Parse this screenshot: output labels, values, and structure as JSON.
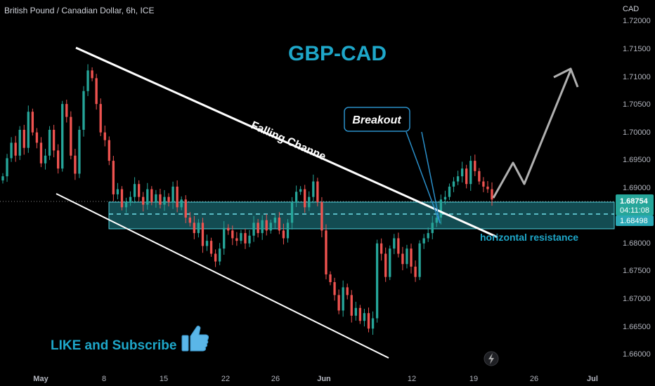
{
  "header": {
    "symbol_title": "British Pound / Canadian Dollar, 6h, ICE",
    "currency": "CAD"
  },
  "annotations": {
    "headline": "GBP-CAD",
    "breakout": "Breakout",
    "falling_channel": "Falling Channe",
    "horizontal_resistance": "horizontal resistance",
    "like_subscribe": "LIKE and Subscribe"
  },
  "price_scale": {
    "labels": [
      "1.72000",
      "1.71500",
      "1.71000",
      "1.70500",
      "1.70000",
      "1.69500",
      "1.69000",
      "1.68000",
      "1.67500",
      "1.67000",
      "1.66500",
      "1.66000"
    ],
    "last_price": "1.68754",
    "countdown": "04:11:08",
    "zone_low": "1.68498"
  },
  "time_axis": {
    "labels": [
      "May",
      "8",
      "15",
      "22",
      "26",
      "Jun",
      "12",
      "19",
      "26",
      "Jul"
    ]
  },
  "colors": {
    "up": "#26a69a",
    "down": "#ef5350",
    "zone": "#2aa8b5",
    "headline": "#1ea7c9",
    "breakout_box": "#2a8fc9",
    "resistance_text": "#1ea7c9",
    "forecast_arrow": "#b0b0b0"
  },
  "chart_data": {
    "type": "candlestick",
    "instrument": "GBP/CAD",
    "interval": "6h",
    "y_range": [
      1.6575,
      1.7222
    ],
    "zone": [
      1.68498,
      1.68754
    ],
    "closes": [
      1.692,
      1.6955,
      1.6985,
      1.696,
      1.701,
      1.6975,
      1.7045,
      1.7005,
      1.6985,
      1.6945,
      1.696,
      1.701,
      1.697,
      1.6935,
      1.706,
      1.7035,
      1.696,
      1.6925,
      1.701,
      1.7085,
      1.7125,
      1.711,
      1.706,
      1.7005,
      1.699,
      1.695,
      1.6885,
      1.6895,
      1.686,
      1.687,
      1.688,
      1.6905,
      1.688,
      1.6865,
      1.6895,
      1.687,
      1.6885,
      1.6865,
      1.688,
      1.687,
      1.69,
      1.686,
      1.6875,
      1.684,
      1.683,
      1.681,
      1.683,
      1.6785,
      1.6795,
      1.677,
      1.6755,
      1.678,
      1.682,
      1.6815,
      1.68,
      1.6795,
      1.681,
      1.679,
      1.6805,
      1.683,
      1.681,
      1.6835,
      1.6815,
      1.683,
      1.684,
      1.6815,
      1.68,
      1.683,
      1.687,
      1.689,
      1.6895,
      1.686,
      1.688,
      1.691,
      1.687,
      1.6815,
      1.673,
      1.6715,
      1.669,
      1.666,
      1.6705,
      1.669,
      1.665,
      1.6665,
      1.664,
      1.6655,
      1.6625,
      1.6645,
      1.679,
      1.677,
      1.6725,
      1.678,
      1.68,
      1.677,
      1.675,
      1.678,
      1.6745,
      1.6725,
      1.679,
      1.68,
      1.681,
      1.683,
      1.684,
      1.6875,
      1.688,
      1.69,
      1.691,
      1.692,
      1.6935,
      1.6905,
      1.695,
      1.693,
      1.691,
      1.69,
      1.6895,
      1.6875
    ]
  }
}
